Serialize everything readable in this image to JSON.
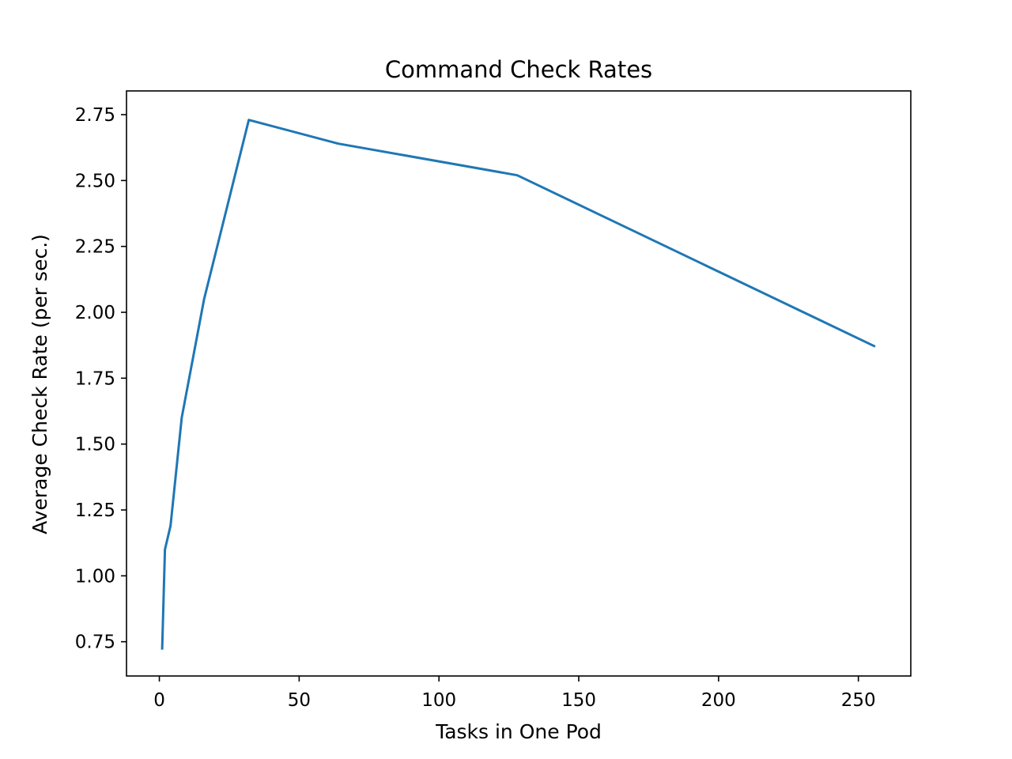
{
  "chart_data": {
    "type": "line",
    "title": "Command Check Rates",
    "xlabel": "Tasks in One Pod",
    "ylabel": "Average Check Rate (per sec.)",
    "xlim": [
      -11.75,
      268.75
    ],
    "ylim": [
      0.62,
      2.84
    ],
    "x_ticks": [
      0,
      50,
      100,
      150,
      200,
      250
    ],
    "y_ticks": [
      0.75,
      1.0,
      1.25,
      1.5,
      1.75,
      2.0,
      2.25,
      2.5,
      2.75
    ],
    "y_tick_labels": [
      "0.75",
      "1.00",
      "1.25",
      "1.50",
      "1.75",
      "2.00",
      "2.25",
      "2.50",
      "2.75"
    ],
    "grid": false,
    "series": [
      {
        "color": "#1f77b4",
        "x": [
          1,
          2,
          4,
          8,
          16,
          32,
          64,
          128,
          256
        ],
        "values": [
          0.72,
          1.1,
          1.19,
          1.6,
          2.05,
          2.73,
          2.64,
          2.52,
          1.87
        ]
      }
    ]
  }
}
